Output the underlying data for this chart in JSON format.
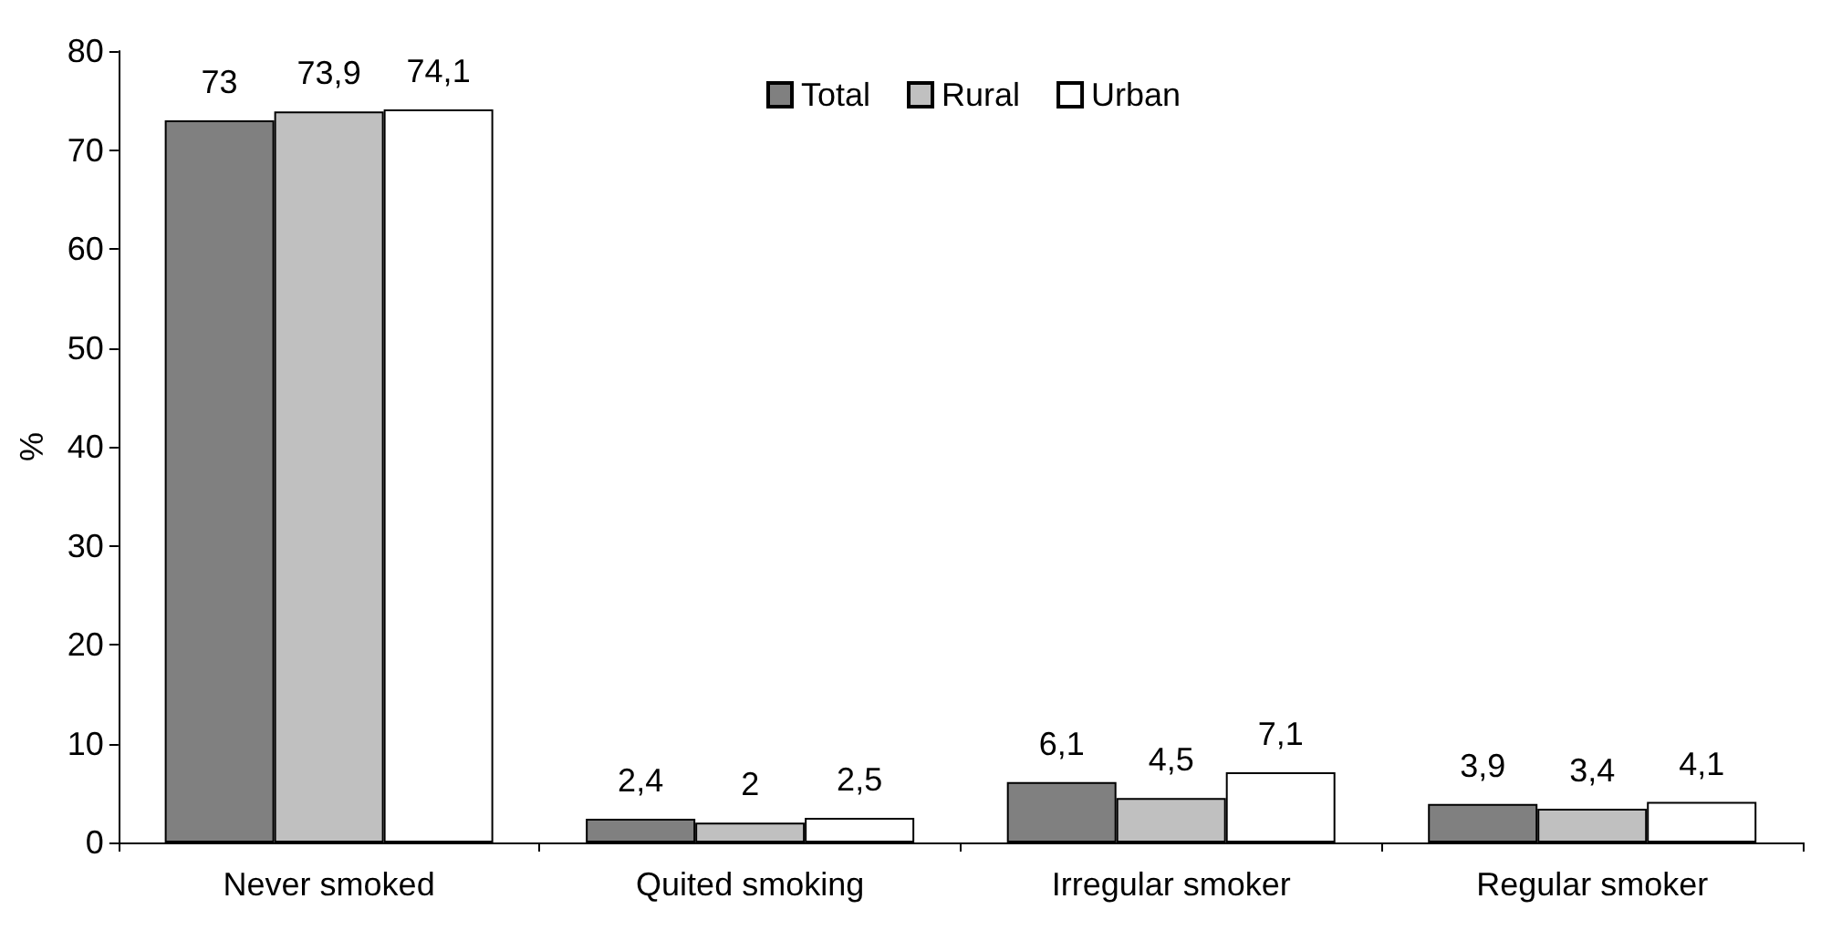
{
  "chart_data": {
    "type": "bar",
    "ylabel": "%",
    "categories": [
      "Never smoked",
      "Quited smoking",
      "Irregular smoker",
      "Regular smoker"
    ],
    "series": [
      {
        "name": "Total",
        "color": "#808080",
        "values": [
          73,
          2.4,
          6.1,
          3.9
        ],
        "value_labels": [
          "73",
          "2,4",
          "6,1",
          "3,9"
        ]
      },
      {
        "name": "Rural",
        "color": "#c0c0c0",
        "values": [
          73.9,
          2,
          4.5,
          3.4
        ],
        "value_labels": [
          "73,9",
          "2",
          "4,5",
          "3,4"
        ]
      },
      {
        "name": "Urban",
        "color": "#ffffff",
        "values": [
          74.1,
          2.5,
          7.1,
          4.1
        ],
        "value_labels": [
          "74,1",
          "2,5",
          "7,1",
          "4,1"
        ]
      }
    ],
    "ylim": [
      0,
      80
    ],
    "yticks": [
      0,
      10,
      20,
      30,
      40,
      50,
      60,
      70,
      80
    ],
    "grid": false,
    "legend": "top right"
  }
}
